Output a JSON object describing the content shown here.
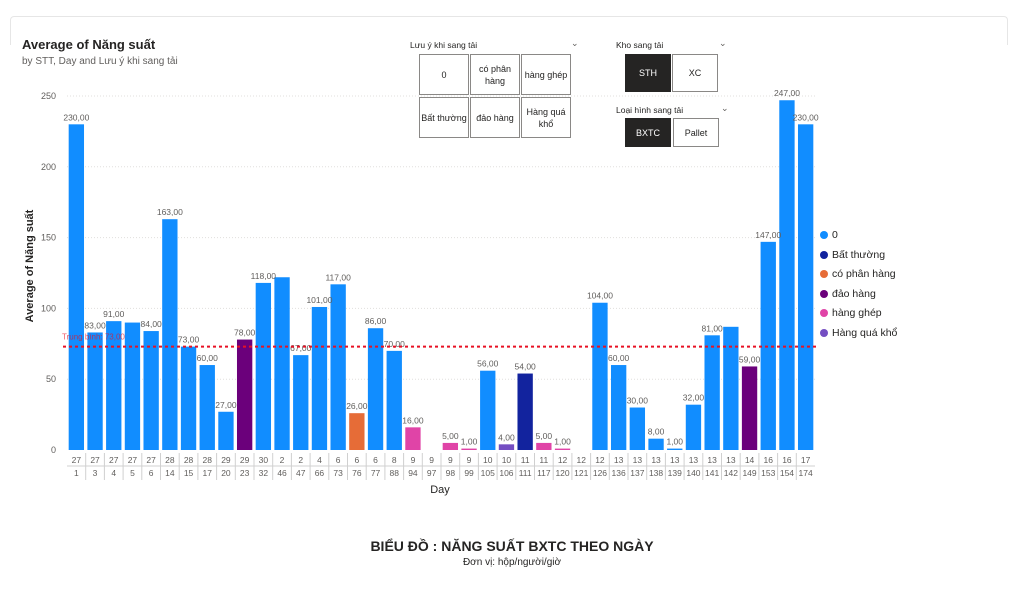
{
  "header": {
    "title": "Average of Năng suất",
    "subtitle": "by STT, Day and Lưu ý khi sang tải"
  },
  "slicers": {
    "luu_y": {
      "label": "Lưu ý khi sang tải",
      "options": [
        "0",
        "có phân hàng",
        "hàng ghép",
        "Bất thường",
        "đảo hàng",
        "Hàng quá khổ"
      ]
    },
    "kho": {
      "label": "Kho sang tải",
      "options": [
        "STH",
        "XC"
      ],
      "selected": "STH"
    },
    "loai_hinh": {
      "label": "Loại hình sang tải",
      "options": [
        "BXTC",
        "Pallet"
      ],
      "selected": "BXTC"
    }
  },
  "footer": {
    "title": "BIỂU ĐỒ : NĂNG SUẤT BXTC THEO NGÀY",
    "subtitle": "Đơn vị: hộp/người/giờ"
  },
  "chart_data": {
    "type": "bar",
    "xlabel": "Day",
    "ylabel": "Average of Năng suất",
    "ylim": [
      0,
      250
    ],
    "yticks": [
      0,
      50,
      100,
      150,
      200,
      250
    ],
    "gridlines": true,
    "legend_position": "right",
    "trend_line": {
      "label": "Trung bình: 73,00",
      "value": 73,
      "color": "#e81123"
    },
    "series": [
      {
        "name": "0",
        "color": "#118dff"
      },
      {
        "name": "Bất thường",
        "color": "#12239e"
      },
      {
        "name": "có phân hàng",
        "color": "#e66c37"
      },
      {
        "name": "đảo hàng",
        "color": "#6b007b"
      },
      {
        "name": "hàng ghép",
        "color": "#e044a7"
      },
      {
        "name": "Hàng quá khổ",
        "color": "#744ec2"
      }
    ],
    "bars": [
      {
        "day": "27",
        "stt": "1",
        "value": 230,
        "label": "230,00",
        "series": "0"
      },
      {
        "day": "27",
        "stt": "3",
        "value": 83,
        "label": "83,00",
        "series": "0"
      },
      {
        "day": "27",
        "stt": "4",
        "value": 91,
        "label": "91,00",
        "series": "0"
      },
      {
        "day": "27",
        "stt": "5",
        "value": 90,
        "label": "",
        "series": "0"
      },
      {
        "day": "27",
        "stt": "6",
        "value": 84,
        "label": "84,00",
        "series": "0"
      },
      {
        "day": "28",
        "stt": "14",
        "value": 163,
        "label": "163,00",
        "series": "0"
      },
      {
        "day": "28",
        "stt": "15",
        "value": 73,
        "label": "73,00",
        "series": "0"
      },
      {
        "day": "28",
        "stt": "17",
        "value": 60,
        "label": "60,00",
        "series": "0"
      },
      {
        "day": "29",
        "stt": "20",
        "value": 27,
        "label": "27,00",
        "series": "0"
      },
      {
        "day": "29",
        "stt": "23",
        "value": 78,
        "label": "78,00",
        "series": "đảo hàng"
      },
      {
        "day": "30",
        "stt": "32",
        "value": 118,
        "label": "118,00",
        "series": "0"
      },
      {
        "day": "2",
        "stt": "46",
        "value": 122,
        "label": "",
        "series": "0"
      },
      {
        "day": "2",
        "stt": "47",
        "value": 67,
        "label": "67,00",
        "series": "0"
      },
      {
        "day": "4",
        "stt": "66",
        "value": 101,
        "label": "101,00",
        "series": "0"
      },
      {
        "day": "6",
        "stt": "73",
        "value": 117,
        "label": "117,00",
        "series": "0"
      },
      {
        "day": "6",
        "stt": "76",
        "value": 26,
        "label": "26,00",
        "series": "có phân hàng"
      },
      {
        "day": "6",
        "stt": "77",
        "value": 86,
        "label": "86,00",
        "series": "0"
      },
      {
        "day": "8",
        "stt": "88",
        "value": 70,
        "label": "70,00",
        "series": "0"
      },
      {
        "day": "9",
        "stt": "94",
        "value": 16,
        "label": "16,00",
        "series": "hàng ghép"
      },
      {
        "day": "9",
        "stt": "97",
        "value": null,
        "label": "",
        "series": "0"
      },
      {
        "day": "9",
        "stt": "98",
        "value": 5,
        "label": "5,00",
        "series": "hàng ghép"
      },
      {
        "day": "9",
        "stt": "99",
        "value": 1,
        "label": "1,00",
        "series": "hàng ghép"
      },
      {
        "day": "10",
        "stt": "105",
        "value": 56,
        "label": "56,00",
        "series": "0"
      },
      {
        "day": "10",
        "stt": "106",
        "value": 4,
        "label": "4,00",
        "series": "Hàng quá khổ"
      },
      {
        "day": "11",
        "stt": "111",
        "value": 54,
        "label": "54,00",
        "series": "Bất thường"
      },
      {
        "day": "11",
        "stt": "117",
        "value": 5,
        "label": "5,00",
        "series": "hàng ghép"
      },
      {
        "day": "12",
        "stt": "120",
        "value": 1,
        "label": "1,00",
        "series": "hàng ghép"
      },
      {
        "day": "12",
        "stt": "121",
        "value": null,
        "label": "",
        "series": "0"
      },
      {
        "day": "12",
        "stt": "126",
        "value": 104,
        "label": "104,00",
        "series": "0"
      },
      {
        "day": "13",
        "stt": "136",
        "value": 60,
        "label": "60,00",
        "series": "0"
      },
      {
        "day": "13",
        "stt": "137",
        "value": 30,
        "label": "30,00",
        "series": "0"
      },
      {
        "day": "13",
        "stt": "138",
        "value": 8,
        "label": "8,00",
        "series": "0"
      },
      {
        "day": "13",
        "stt": "139",
        "value": 1,
        "label": "1,00",
        "series": "0"
      },
      {
        "day": "13",
        "stt": "140",
        "value": 32,
        "label": "32,00",
        "series": "0"
      },
      {
        "day": "13",
        "stt": "141",
        "value": 81,
        "label": "81,00",
        "series": "0"
      },
      {
        "day": "13",
        "stt": "142",
        "value": 87,
        "label": "",
        "series": "0"
      },
      {
        "day": "14",
        "stt": "149",
        "value": 59,
        "label": "59,00",
        "series": "đảo hàng"
      },
      {
        "day": "16",
        "stt": "153",
        "value": 147,
        "label": "147,00",
        "series": "0"
      },
      {
        "day": "16",
        "stt": "154",
        "value": 247,
        "label": "247,00",
        "series": "0"
      },
      {
        "day": "17",
        "stt": "174",
        "value": 230,
        "label": "230,00",
        "series": "0"
      }
    ]
  }
}
